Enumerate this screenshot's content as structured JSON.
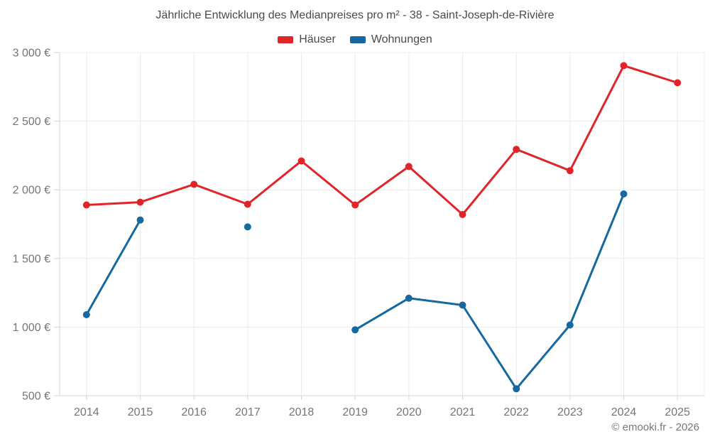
{
  "header": {
    "title": "Jährliche Entwicklung des Medianpreises pro m² - 38 - Saint-Joseph-de-Rivière"
  },
  "footer": {
    "credit": "© emooki.fr - 2026"
  },
  "colors": {
    "hauser": "#e02429",
    "wohnungen": "#16699e",
    "grid": "#ececec",
    "axis": "#d6d6d6",
    "tick_text": "#757575",
    "title_text": "#4a4a4a"
  },
  "chart_data": {
    "type": "line",
    "title": "Jährliche Entwicklung des Medianpreises pro m² - 38 - Saint-Joseph-de-Rivière",
    "categories": [
      "2014",
      "2015",
      "2016",
      "2017",
      "2018",
      "2019",
      "2020",
      "2021",
      "2022",
      "2023",
      "2024",
      "2025"
    ],
    "series": [
      {
        "name": "Häuser",
        "color": "#e02429",
        "values": [
          1890,
          1910,
          2040,
          1895,
          2210,
          1890,
          2170,
          1820,
          2295,
          2140,
          2905,
          2780
        ]
      },
      {
        "name": "Wohnungen",
        "color": "#16699e",
        "values": [
          1090,
          1780,
          null,
          1730,
          null,
          980,
          1210,
          1160,
          550,
          1015,
          1970,
          null
        ]
      }
    ],
    "xlabel": "",
    "ylabel": "",
    "unit": "€",
    "ylim": [
      500,
      3000
    ],
    "ytick_step": 500,
    "ytick_labels": [
      "500 €",
      "1 000 €",
      "1 500 €",
      "2 000 €",
      "2 500 €",
      "3 000 €"
    ],
    "grid": true,
    "legend_position": "top"
  }
}
